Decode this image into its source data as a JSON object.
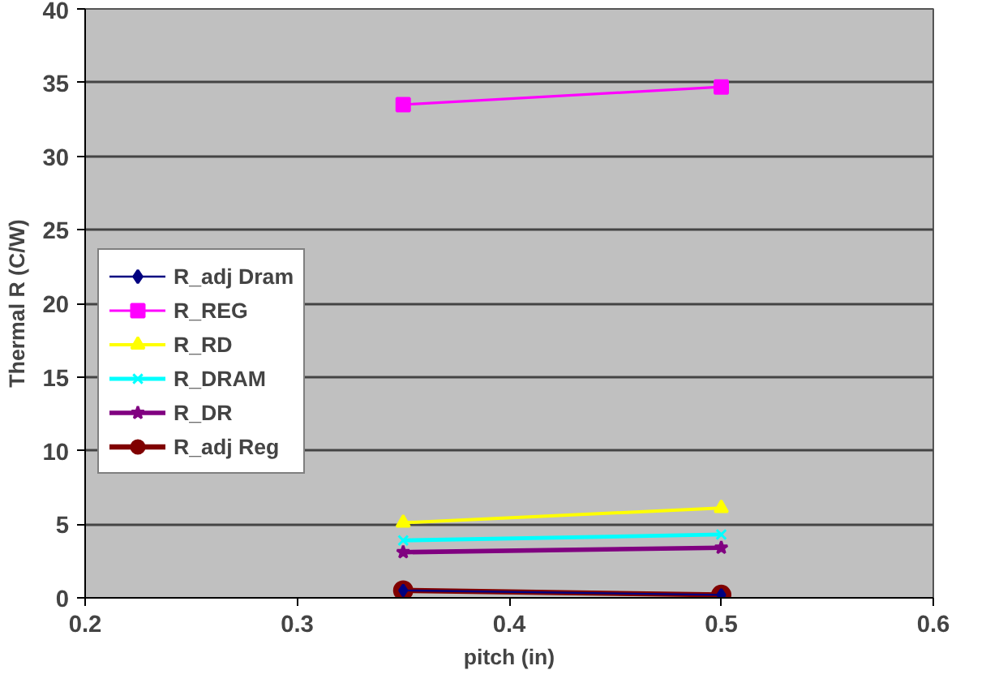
{
  "chart_data": {
    "type": "line",
    "xlabel": "pitch (in)",
    "ylabel": "Thermal R (C/W)",
    "x": [
      0.35,
      0.5
    ],
    "xlim": [
      0.2,
      0.6
    ],
    "xticks": [
      0.2,
      0.3,
      0.4,
      0.5,
      0.6
    ],
    "ylim": [
      0,
      40
    ],
    "yticks": [
      0,
      5,
      10,
      15,
      20,
      25,
      30,
      35,
      40
    ],
    "grid": "y",
    "legend": "left",
    "line_style": "solid",
    "series": [
      {
        "name": "R_adj Dram",
        "color": "#000080",
        "values": [
          0.5,
          0.2
        ],
        "marker": "diamond"
      },
      {
        "name": "R_REG",
        "color": "#ff00ff",
        "values": [
          33.5,
          34.7
        ],
        "marker": "square"
      },
      {
        "name": "R_RD",
        "color": "#ffff00",
        "values": [
          5.1,
          6.1
        ],
        "marker": "triangle"
      },
      {
        "name": "R_DRAM",
        "color": "#00ffff",
        "values": [
          3.9,
          4.3
        ],
        "marker": "cross"
      },
      {
        "name": "R_DR",
        "color": "#800080",
        "values": [
          3.1,
          3.4
        ],
        "marker": "star"
      },
      {
        "name": "R_adj Reg",
        "color": "#800000",
        "values": [
          0.5,
          0.2
        ],
        "marker": "circle"
      }
    ]
  }
}
